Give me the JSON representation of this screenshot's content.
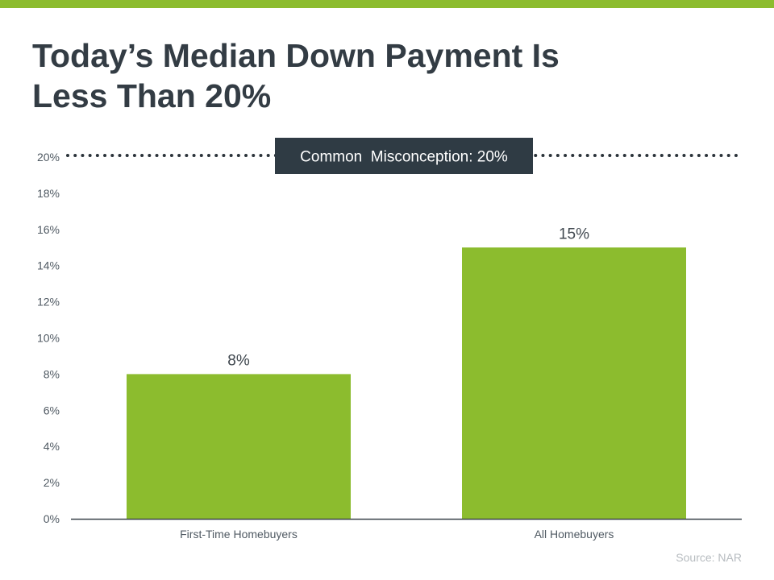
{
  "title_lines": [
    "Today’s Median Down Payment Is",
    "Less Than 20%"
  ],
  "source": "Source: NAR",
  "colors": {
    "accent": "#8cbc2e",
    "title": "#333c44",
    "callout_bg": "#2f3b44",
    "axis_text": "#505a63"
  },
  "chart_data": {
    "type": "bar",
    "title": "Today’s Median Down Payment Is Less Than 20%",
    "xlabel": "",
    "ylabel": "",
    "categories": [
      "First-Time Homebuyers",
      "All Homebuyers"
    ],
    "values": [
      8,
      15
    ],
    "value_labels": [
      "8%",
      "15%"
    ],
    "ylim": [
      0,
      20
    ],
    "yticks": [
      0,
      2,
      4,
      6,
      8,
      10,
      12,
      14,
      16,
      18,
      20
    ],
    "ytick_labels": [
      "0%",
      "2%",
      "4%",
      "6%",
      "8%",
      "10%",
      "12%",
      "14%",
      "16%",
      "18%",
      "20%"
    ],
    "grid": false,
    "legend": "none",
    "reference_line": {
      "value": 20,
      "style": "dotted",
      "label": "Common  Misconception: 20%"
    }
  }
}
